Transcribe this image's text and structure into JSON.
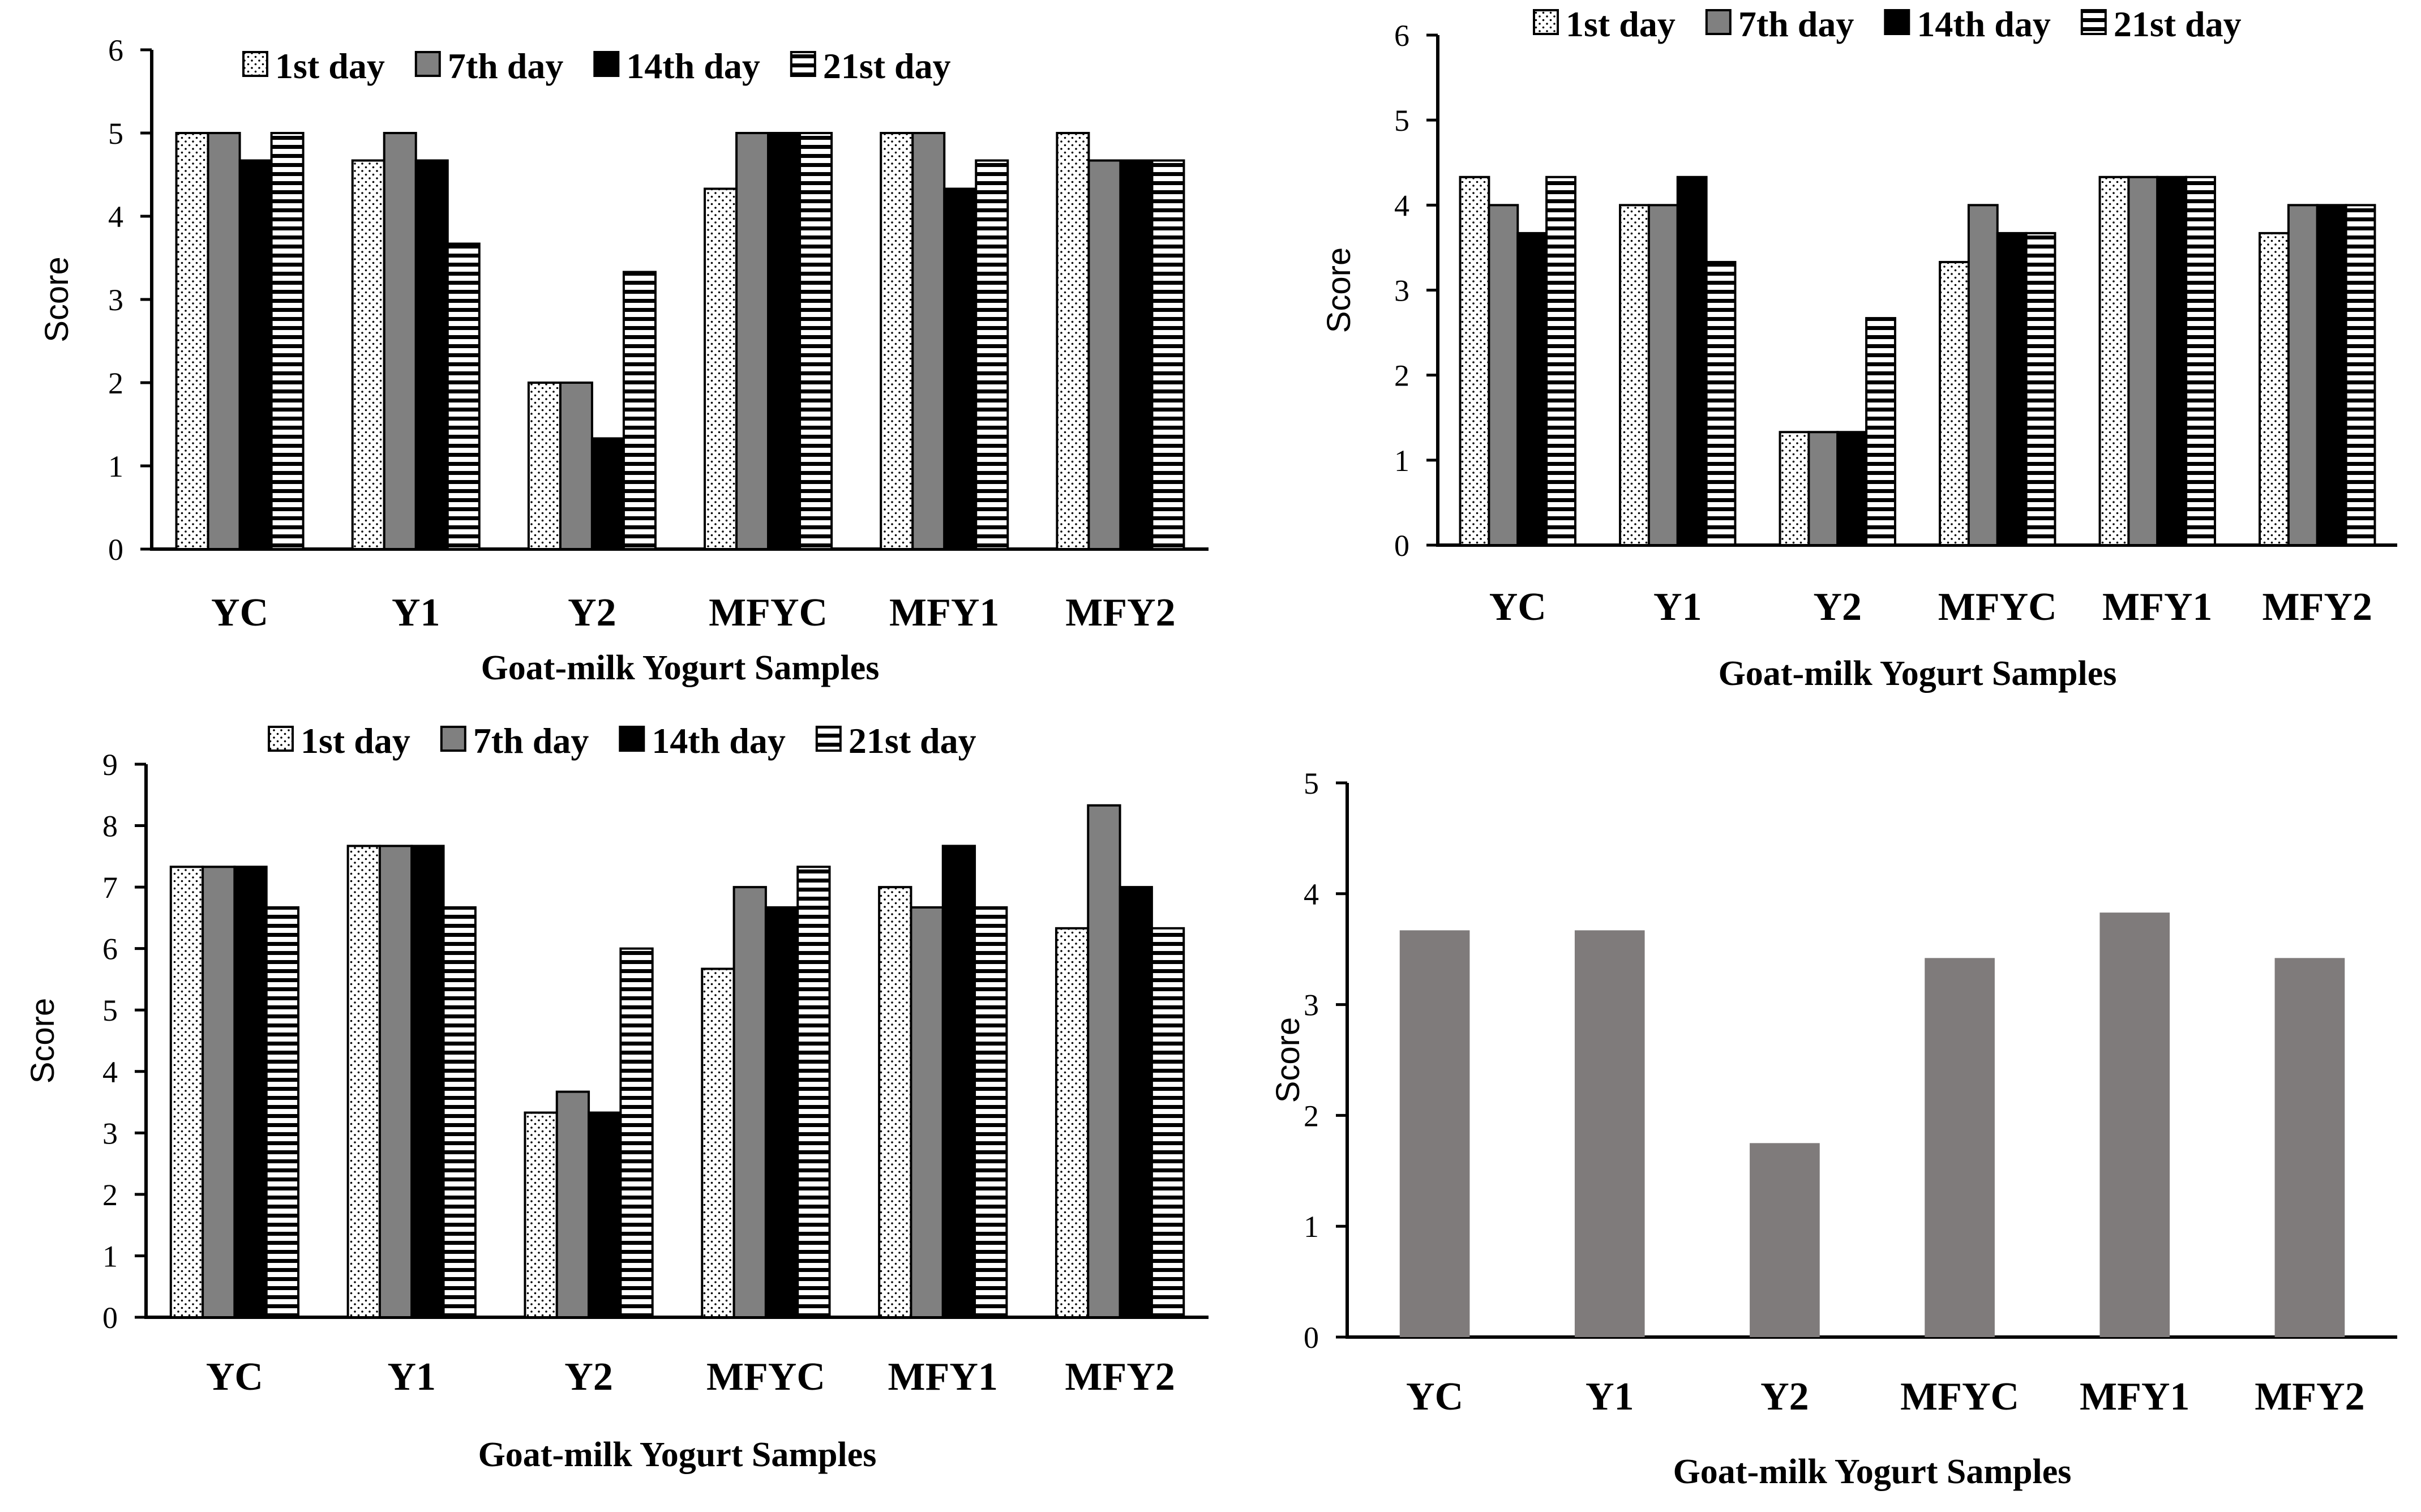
{
  "colors": {
    "axis": "#000000",
    "dark_gray": "#808080",
    "black": "#000000",
    "solid_bar": "#7f7b7b",
    "background": "#ffffff"
  },
  "chart_data": [
    {
      "type": "bar",
      "position": "top-left",
      "categories": [
        "YC",
        "Y1",
        "Y2",
        "MFYC",
        "MFY1",
        "MFY2"
      ],
      "series": [
        {
          "name": "1st day",
          "pattern": "dots",
          "values": [
            5.0,
            4.67,
            2.0,
            4.33,
            5.0,
            5.0
          ]
        },
        {
          "name": "7th day",
          "pattern": "gray",
          "values": [
            5.0,
            5.0,
            2.0,
            5.0,
            5.0,
            4.67
          ]
        },
        {
          "name": "14th day",
          "pattern": "black",
          "values": [
            4.67,
            4.67,
            1.33,
            5.0,
            4.33,
            4.67
          ]
        },
        {
          "name": "21st day",
          "pattern": "stripes",
          "values": [
            5.0,
            3.67,
            3.33,
            5.0,
            4.67,
            4.67
          ]
        }
      ],
      "title": "",
      "xlabel": "Goat-milk Yogurt Samples",
      "ylabel": "Score",
      "ylim": [
        0,
        6
      ],
      "yticks": [
        "0",
        "1",
        "2",
        "3",
        "4",
        "5",
        "6"
      ],
      "legend": "top"
    },
    {
      "type": "bar",
      "position": "top-right",
      "categories": [
        "YC",
        "Y1",
        "Y2",
        "MFYC",
        "MFY1",
        "MFY2"
      ],
      "series": [
        {
          "name": "1st day",
          "pattern": "dots",
          "values": [
            4.33,
            4.0,
            1.33,
            3.33,
            4.33,
            3.67
          ]
        },
        {
          "name": "7th day",
          "pattern": "gray",
          "values": [
            4.0,
            4.0,
            1.33,
            4.0,
            4.33,
            4.0
          ]
        },
        {
          "name": "14th day",
          "pattern": "black",
          "values": [
            3.67,
            4.33,
            1.33,
            3.67,
            4.33,
            4.0
          ]
        },
        {
          "name": "21st day",
          "pattern": "stripes",
          "values": [
            4.33,
            3.33,
            2.67,
            3.67,
            4.33,
            4.0
          ]
        }
      ],
      "title": "",
      "xlabel": "Goat-milk Yogurt Samples",
      "ylabel": "Score",
      "ylim": [
        0,
        6
      ],
      "yticks": [
        "0",
        "1",
        "2",
        "3",
        "4",
        "5",
        "6"
      ],
      "legend": "top"
    },
    {
      "type": "bar",
      "position": "bottom-left",
      "categories": [
        "YC",
        "Y1",
        "Y2",
        "MFYC",
        "MFY1",
        "MFY2"
      ],
      "series": [
        {
          "name": "1st day",
          "pattern": "dots",
          "values": [
            7.33,
            7.67,
            3.33,
            5.67,
            7.0,
            6.33
          ]
        },
        {
          "name": "7th day",
          "pattern": "gray",
          "values": [
            7.33,
            7.67,
            3.67,
            7.0,
            6.67,
            8.33
          ]
        },
        {
          "name": "14th day",
          "pattern": "black",
          "values": [
            7.33,
            7.67,
            3.33,
            6.67,
            7.67,
            7.0
          ]
        },
        {
          "name": "21st day",
          "pattern": "stripes",
          "values": [
            6.67,
            6.67,
            6.0,
            7.33,
            6.67,
            6.33
          ]
        }
      ],
      "title": "",
      "xlabel": "Goat-milk Yogurt Samples",
      "ylabel": "Score",
      "ylim": [
        0,
        9
      ],
      "yticks": [
        "0",
        "1",
        "2",
        "3",
        "4",
        "5",
        "6",
        "7",
        "8",
        "9"
      ],
      "legend": "top"
    },
    {
      "type": "bar",
      "position": "bottom-right",
      "categories": [
        "YC",
        "Y1",
        "Y2",
        "MFYC",
        "MFY1",
        "MFY2"
      ],
      "series": [
        {
          "name": "",
          "pattern": "solid",
          "values": [
            3.67,
            3.67,
            1.75,
            3.42,
            3.83,
            3.42
          ]
        }
      ],
      "title": "",
      "xlabel": "Goat-milk Yogurt Samples",
      "ylabel": "Score",
      "ylim": [
        0,
        5
      ],
      "yticks": [
        "0",
        "1",
        "2",
        "3",
        "4",
        "5"
      ],
      "legend": "none"
    }
  ]
}
